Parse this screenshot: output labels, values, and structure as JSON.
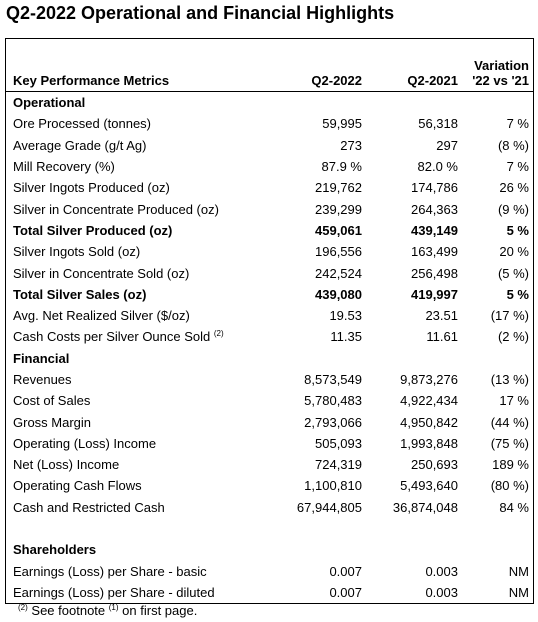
{
  "title": "Q2-2022 Operational and Financial Highlights",
  "table": {
    "header": [
      "Key Performance Metrics",
      "Q2-2022",
      "Q2-2021",
      [
        "Variation",
        "'22 vs '21"
      ]
    ],
    "sections": [
      {
        "title": "Operational",
        "rows": [
          {
            "label": "Ore Processed (tonnes)",
            "cells": [
              "59,995",
              "56,318",
              "7 %"
            ]
          },
          {
            "label": "Average Grade (g/t Ag)",
            "cells": [
              "273",
              "297",
              "(8 %)"
            ]
          },
          {
            "label": "Mill Recovery (%)",
            "cells": [
              "87.9 %",
              "82.0 %",
              "7 %"
            ]
          },
          {
            "label": "Silver Ingots Produced (oz)",
            "cells": [
              "219,762",
              "174,786",
              "26 %"
            ]
          },
          {
            "label": "Silver in Concentrate Produced (oz)",
            "cells": [
              "239,299",
              "264,363",
              "(9 %)"
            ]
          },
          {
            "label": "Total Silver Produced (oz)",
            "cells": [
              "459,061",
              "439,149",
              "5 %"
            ],
            "bold": true
          },
          {
            "label": "Silver Ingots Sold (oz)",
            "cells": [
              "196,556",
              "163,499",
              "20 %"
            ]
          },
          {
            "label": "Silver in Concentrate Sold (oz)",
            "cells": [
              "242,524",
              "256,498",
              "(5 %)"
            ]
          },
          {
            "label": "Total Silver Sales (oz)",
            "cells": [
              "439,080",
              "419,997",
              "5 %"
            ],
            "bold": true
          },
          {
            "label": "Avg. Net Realized Silver ($/oz)",
            "cells": [
              "19.53",
              "23.51",
              "(17 %)"
            ]
          },
          {
            "label": "Cash Costs per Silver Ounce Sold",
            "note": "(2)",
            "cells": [
              "11.35",
              "11.61",
              "(2 %)"
            ]
          }
        ]
      },
      {
        "title": "Financial",
        "rows": [
          {
            "label": "Revenues",
            "cells": [
              "8,573,549",
              "9,873,276",
              "(13 %)"
            ]
          },
          {
            "label": "Cost of Sales",
            "cells": [
              "5,780,483",
              "4,922,434",
              "17 %"
            ]
          },
          {
            "label": "Gross Margin",
            "cells": [
              "2,793,066",
              "4,950,842",
              "(44 %)"
            ]
          },
          {
            "label": "Operating (Loss) Income",
            "cells": [
              "505,093",
              "1,993,848",
              "(75 %)"
            ]
          },
          {
            "label": "Net (Loss) Income",
            "cells": [
              "724,319",
              "250,693",
              "189 %"
            ]
          },
          {
            "label": "Operating Cash Flows",
            "cells": [
              "1,100,810",
              "5,493,640",
              "(80 %)"
            ]
          },
          {
            "label": "Cash and Restricted Cash",
            "cells": [
              "67,944,805",
              "36,874,048",
              "84 %"
            ]
          }
        ]
      },
      {
        "title": "Shareholders",
        "rows": [
          {
            "label": "Earnings (Loss) per Share - basic",
            "cells": [
              "0.007",
              "0.003",
              "NM"
            ]
          },
          {
            "label": "Earnings (Loss) per Share - diluted",
            "cells": [
              "0.007",
              "0.003",
              "NM"
            ]
          }
        ]
      }
    ]
  },
  "footnote": {
    "mark": "(2)",
    "text": "See footnote",
    "ref": "(1)",
    "tail": "on first page."
  }
}
